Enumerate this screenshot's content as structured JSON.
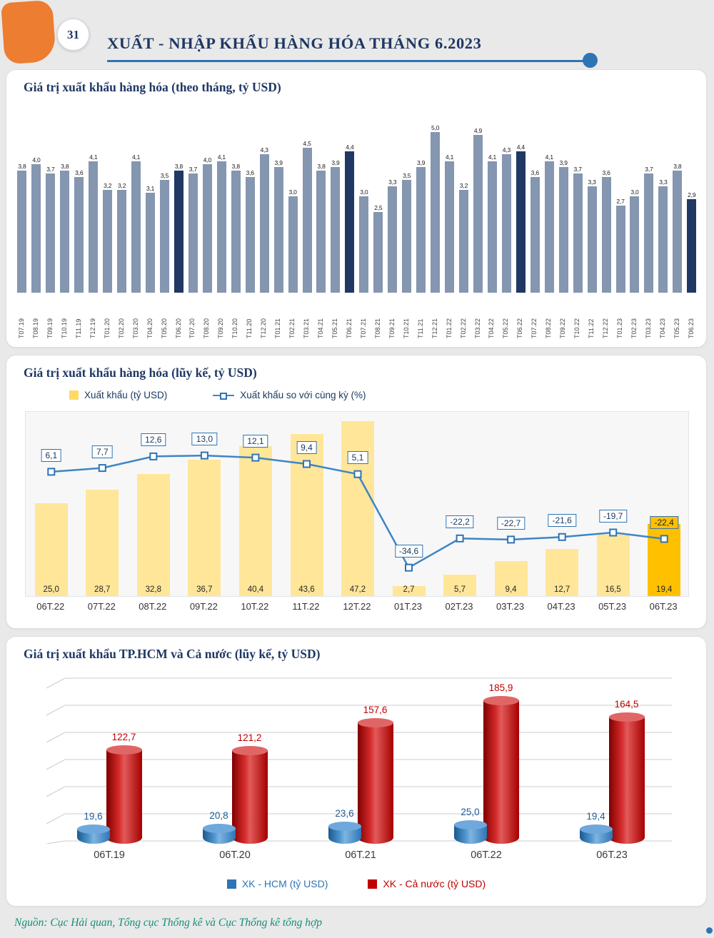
{
  "page": {
    "number": "31",
    "title": "XUẤT - NHẬP KHẨU HÀNG HÓA THÁNG 6.2023",
    "source": "Nguồn: Cục Hải quan, Tổng cục Thống kê và Cục Thống kê tổng hợp"
  },
  "colors": {
    "navy": "#1F3864",
    "orange": "#ED7D31",
    "accent_blue": "#2E74B5",
    "bar_gray_blue": "#8496B0",
    "bar_yellow": "#FFE699",
    "bar_gold": "#FFC000",
    "line_blue": "#3D85C6",
    "hcm_blue": "#2E75B6",
    "country_red": "#C00000",
    "source_teal": "#148F77"
  },
  "chart_data": [
    {
      "type": "bar",
      "title": "Giá trị xuất khẩu hàng hóa (theo tháng, tỷ USD)",
      "ylabel": "tỷ USD",
      "ylim": [
        0,
        5.5
      ],
      "grid": false,
      "categories": [
        "T07.19",
        "T08.19",
        "T09.19",
        "T10.19",
        "T11.19",
        "T12.19",
        "T01.20",
        "T02.20",
        "T03.20",
        "T04.20",
        "T05.20",
        "T06.20",
        "T07.20",
        "T08.20",
        "T09.20",
        "T10.20",
        "T11.20",
        "T12.20",
        "T01.21",
        "T02.21",
        "T03.21",
        "T04.21",
        "T05.21",
        "T06.21",
        "T07.21",
        "T08.21",
        "T09.21",
        "T10.21",
        "T11.21",
        "T12.21",
        "T01.22",
        "T02.22",
        "T03.22",
        "T04.22",
        "T05.22",
        "T06.22",
        "T07.22",
        "T08.22",
        "T09.22",
        "T10.22",
        "T11.22",
        "T12.22",
        "T01.23",
        "T02.23",
        "T03.23",
        "T04.23",
        "T05.23",
        "T06.23"
      ],
      "values": [
        3.8,
        4.0,
        3.7,
        3.8,
        3.6,
        4.1,
        3.2,
        3.2,
        4.1,
        3.1,
        3.5,
        3.8,
        3.7,
        4.0,
        4.1,
        3.8,
        3.6,
        4.3,
        3.9,
        3.0,
        4.5,
        3.8,
        3.9,
        4.4,
        3.0,
        2.5,
        3.3,
        3.5,
        3.9,
        5.0,
        4.1,
        3.2,
        4.9,
        4.1,
        4.3,
        4.4,
        3.6,
        4.1,
        3.9,
        3.7,
        3.3,
        3.6,
        2.7,
        3.0,
        3.7,
        3.3,
        3.8,
        2.9
      ],
      "highlight_indices": [
        11,
        23,
        35,
        47
      ],
      "bar_color": "#8496B0",
      "highlight_color": "#1F3864"
    },
    {
      "type": "bar+line",
      "title": "Giá trị xuất khẩu hàng hóa (lũy kế, tỷ USD)",
      "legend_position": "top",
      "categories": [
        "06T.22",
        "07T.22",
        "08T.22",
        "09T.22",
        "10T.22",
        "11T.22",
        "12T.22",
        "01T.23",
        "02T.23",
        "03T.23",
        "04T.23",
        "05T.23",
        "06T.23"
      ],
      "bars": {
        "name": "Xuất khẩu (tỷ USD)",
        "values": [
          25.0,
          28.7,
          32.8,
          36.7,
          40.4,
          43.6,
          47.2,
          2.7,
          5.7,
          9.4,
          12.7,
          16.5,
          19.4
        ],
        "color": "#FFE699",
        "highlight_index": 12,
        "highlight_color": "#FFC000"
      },
      "line": {
        "name": "Xuất khẩu so với cùng kỳ (%)",
        "values": [
          6.1,
          7.7,
          12.6,
          13.0,
          12.1,
          9.4,
          5.1,
          -34.6,
          -22.2,
          -22.7,
          -21.6,
          -19.7,
          -22.4
        ],
        "color": "#3D85C6",
        "marker": "square",
        "highlight_index": 12
      }
    },
    {
      "type": "bar3d",
      "title": "Giá trị xuất khẩu TP.HCM và Cả nước (lũy kế, tỷ USD)",
      "legend_position": "bottom",
      "categories": [
        "06T.19",
        "06T.20",
        "06T.21",
        "06T.22",
        "06T.23"
      ],
      "series": [
        {
          "name": "XK - HCM (tỷ USD)",
          "values": [
            19.6,
            20.8,
            23.6,
            25.0,
            19.4
          ],
          "color": "#2E75B6",
          "label_color": "#1F5C99"
        },
        {
          "name": "XK - Cả nước (tỷ USD)",
          "values": [
            122.7,
            121.2,
            157.6,
            185.9,
            164.5
          ],
          "color": "#C00000",
          "label_color": "#C00000"
        }
      ]
    }
  ]
}
